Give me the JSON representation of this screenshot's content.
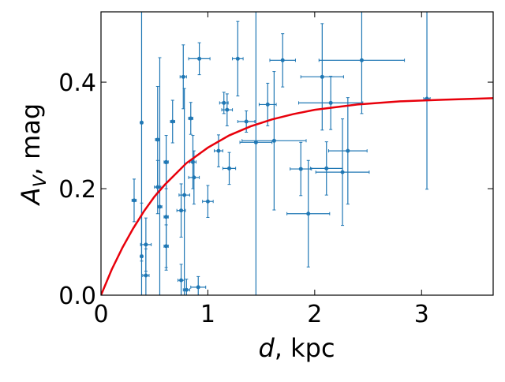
{
  "chart_data": {
    "type": "scatter",
    "x_label_parts": [
      "d",
      ", kpc"
    ],
    "y_label_parts": [
      "A",
      "V",
      ", mag"
    ],
    "xlim": [
      0,
      3.67
    ],
    "ylim": [
      0,
      0.532
    ],
    "xticks": [
      0,
      1,
      2,
      3
    ],
    "yticks": [
      {
        "value": 0,
        "label": "0.0"
      },
      0.2,
      0.4
    ],
    "series": [
      {
        "type": "scatter",
        "color": "#1f77b4",
        "x": [
          0.31,
          0.38,
          0.38,
          0.42,
          0.42,
          0.53,
          0.55,
          0.53,
          0.61,
          0.61,
          0.61,
          0.67,
          0.75,
          0.77,
          0.75,
          0.78,
          0.8,
          0.84,
          0.86,
          0.87,
          0.92,
          0.91,
          1.0,
          1.1,
          1.15,
          1.18,
          1.2,
          1.28,
          1.36,
          1.45,
          1.56,
          1.62,
          1.7,
          1.87,
          1.94,
          2.07,
          2.15,
          2.11,
          2.26,
          2.31,
          2.44,
          3.05
        ],
        "values": [
          0.178,
          0.324,
          0.073,
          0.095,
          0.037,
          0.292,
          0.166,
          0.203,
          0.147,
          0.25,
          0.092,
          0.326,
          0.159,
          0.41,
          0.028,
          0.188,
          0.01,
          0.332,
          0.25,
          0.221,
          0.444,
          0.015,
          0.176,
          0.271,
          0.361,
          0.348,
          0.238,
          0.444,
          0.326,
          0.287,
          0.358,
          0.29,
          0.441,
          0.237,
          0.153,
          0.41,
          0.361,
          0.238,
          0.231,
          0.271,
          0.441,
          0.369
        ],
        "xerr": [
          0.02,
          0.01,
          0.01,
          0.05,
          0.03,
          0.02,
          0.02,
          0.03,
          0.02,
          0.02,
          0.02,
          0.02,
          0.04,
          0.03,
          0.03,
          0.05,
          0.03,
          0.02,
          0.03,
          0.05,
          0.1,
          0.07,
          0.05,
          0.04,
          0.04,
          0.05,
          0.06,
          0.05,
          0.08,
          0.15,
          0.08,
          0.3,
          0.12,
          0.1,
          0.2,
          0.2,
          0.3,
          0.15,
          0.25,
          0.18,
          0.4,
          0.03
        ],
        "yerr": [
          0.04,
          0.26,
          0.1,
          0.05,
          0.05,
          0.1,
          0.28,
          0.05,
          0.1,
          0.05,
          0.04,
          0.04,
          0.05,
          0.06,
          0.03,
          0.2,
          0.02,
          0.03,
          0.05,
          0.05,
          0.03,
          0.02,
          0.03,
          0.03,
          0.02,
          0.03,
          0.03,
          0.07,
          0.02,
          0.29,
          0.04,
          0.13,
          0.05,
          0.05,
          0.1,
          0.1,
          0.05,
          0.05,
          0.1,
          0.1,
          0.1,
          0.17
        ]
      },
      {
        "type": "line",
        "color": "#e8000b",
        "x": [
          0,
          0.1,
          0.2,
          0.3,
          0.4,
          0.5,
          0.6,
          0.8,
          1.0,
          1.2,
          1.4,
          1.6,
          1.8,
          2.0,
          2.4,
          2.8,
          3.2,
          3.67
        ],
        "values": [
          0,
          0.048,
          0.089,
          0.125,
          0.157,
          0.185,
          0.208,
          0.248,
          0.277,
          0.3,
          0.317,
          0.33,
          0.34,
          0.348,
          0.358,
          0.364,
          0.367,
          0.37
        ]
      }
    ]
  }
}
